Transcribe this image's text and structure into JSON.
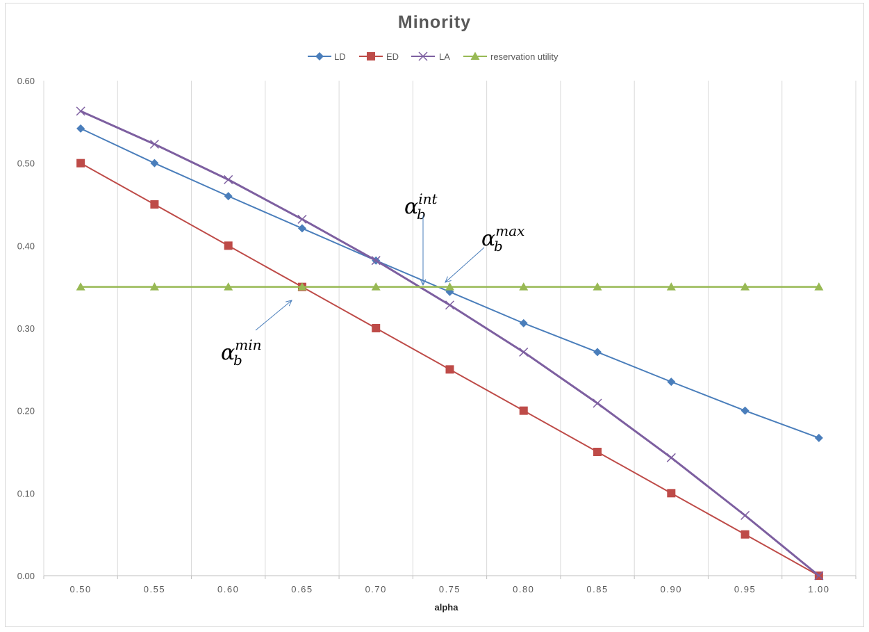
{
  "chart_data": {
    "type": "line",
    "title": "Minority",
    "xlabel": "alpha",
    "ylabel": "",
    "x": [
      0.5,
      0.55,
      0.6,
      0.65,
      0.7,
      0.75,
      0.8,
      0.85,
      0.9,
      0.95,
      1.0
    ],
    "x_tick_labels": [
      "0.50",
      "0.55",
      "0.60",
      "0.65",
      "0.70",
      "0.75",
      "0.80",
      "0.85",
      "0.90",
      "0.95",
      "1.00"
    ],
    "ylim": [
      0,
      0.6
    ],
    "y_ticks": [
      0,
      0.1,
      0.2,
      0.3,
      0.4,
      0.5,
      0.6
    ],
    "y_tick_labels": [
      "0.00",
      "0.10",
      "0.20",
      "0.30",
      "0.40",
      "0.50",
      "0.60"
    ],
    "grid": "vertical",
    "legend_position": "top",
    "series": [
      {
        "name": "LD",
        "color": "#4a7ebb",
        "marker": "diamond",
        "values": [
          0.542,
          0.5,
          0.46,
          0.421,
          0.382,
          0.344,
          0.306,
          0.271,
          0.235,
          0.2,
          0.167
        ]
      },
      {
        "name": "ED",
        "color": "#be4b48",
        "marker": "square",
        "values": [
          0.5,
          0.45,
          0.4,
          0.35,
          0.3,
          0.25,
          0.2,
          0.15,
          0.1,
          0.05,
          0.0
        ]
      },
      {
        "name": "LA",
        "color": "#7d5fa0",
        "marker": "x",
        "values": [
          0.563,
          0.523,
          0.48,
          0.432,
          0.382,
          0.328,
          0.271,
          0.209,
          0.143,
          0.073,
          0.0
        ]
      },
      {
        "name": "reservation utility",
        "color": "#98b954",
        "marker": "triangle",
        "values": [
          0.35,
          0.35,
          0.35,
          0.35,
          0.35,
          0.35,
          0.35,
          0.35,
          0.35,
          0.35,
          0.35
        ]
      }
    ],
    "annotations": [
      {
        "base": "α",
        "sub": "b",
        "sup": "int",
        "target_x": 0.733,
        "target_y": 0.35
      },
      {
        "base": "α",
        "sub": "b",
        "sup": "max",
        "target_x": 0.745,
        "target_y": 0.355
      },
      {
        "base": "α",
        "sub": "b",
        "sup": "min",
        "target_x": 0.65,
        "target_y": 0.335
      }
    ]
  }
}
